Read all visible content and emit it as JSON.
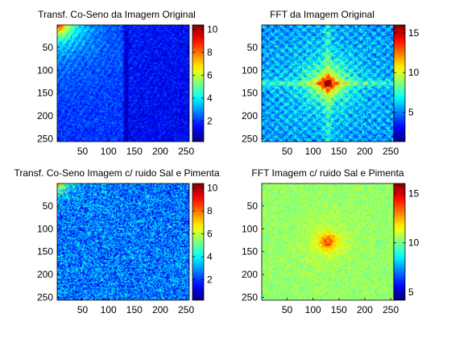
{
  "window": {
    "background": "#ffffff"
  },
  "colormap": "jet",
  "chart_data": [
    {
      "type": "heatmap",
      "title": "Transf. Co-Seno da Imagem Original",
      "pattern": "dct_original",
      "xlim": [
        1,
        256
      ],
      "ylim": [
        1,
        256
      ],
      "y_reversed": true,
      "xticks": [
        50,
        100,
        150,
        200,
        250
      ],
      "yticks": [
        50,
        100,
        150,
        200,
        250
      ],
      "colorbar": {
        "clim": [
          0.2,
          10.4
        ],
        "ticks": [
          2,
          4,
          6,
          8,
          10
        ]
      },
      "features": "energy concentrated at top-left corner (low frequencies), vertical dark band near column 130"
    },
    {
      "type": "heatmap",
      "title": "FFT da Imagem Original",
      "pattern": "fft_original",
      "xlim": [
        1,
        256
      ],
      "ylim": [
        1,
        256
      ],
      "y_reversed": true,
      "xticks": [
        50,
        100,
        150,
        200,
        250
      ],
      "yticks": [
        50,
        100,
        150,
        200,
        250
      ],
      "colorbar": {
        "clim": [
          1.3,
          16
        ],
        "ticks": [
          5,
          10,
          15
        ]
      },
      "features": "peak at center (128,128), horizontal and vertical cross streaks"
    },
    {
      "type": "heatmap",
      "title": "Transf. Co-Seno Imagem c/ ruido Sal e Pimenta",
      "pattern": "dct_noisy",
      "xlim": [
        1,
        256
      ],
      "ylim": [
        1,
        256
      ],
      "y_reversed": true,
      "xticks": [
        50,
        100,
        150,
        200,
        250
      ],
      "yticks": [
        50,
        100,
        150,
        200,
        250
      ],
      "colorbar": {
        "clim": [
          0.2,
          10.4
        ],
        "ticks": [
          2,
          4,
          6,
          8,
          10
        ]
      },
      "features": "low-frequency energy at top-left, uniform noise floor elsewhere"
    },
    {
      "type": "heatmap",
      "title": "FFT Imagem c/ ruido Sal e Pimenta",
      "pattern": "fft_noisy",
      "xlim": [
        1,
        256
      ],
      "ylim": [
        1,
        256
      ],
      "y_reversed": true,
      "xticks": [
        50,
        100,
        150,
        200,
        250
      ],
      "yticks": [
        50,
        100,
        150,
        200,
        250
      ],
      "colorbar": {
        "clim": [
          4.2,
          16
        ],
        "ticks": [
          5,
          10,
          15
        ]
      },
      "features": "central peak at (128,128), elevated uniform noise floor"
    }
  ]
}
